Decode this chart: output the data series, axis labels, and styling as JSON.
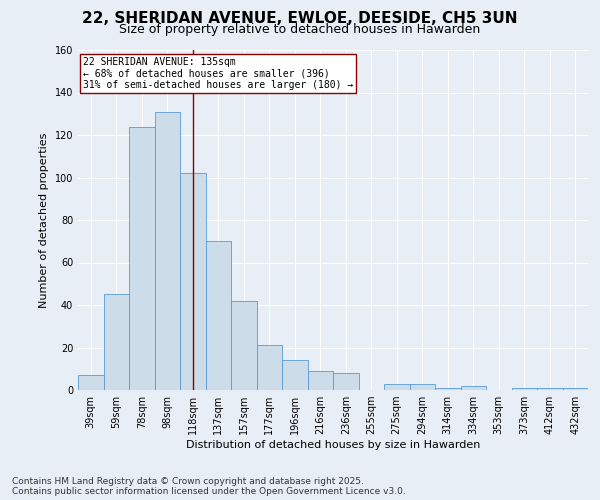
{
  "title": "22, SHERIDAN AVENUE, EWLOE, DEESIDE, CH5 3UN",
  "subtitle": "Size of property relative to detached houses in Hawarden",
  "xlabel": "Distribution of detached houses by size in Hawarden",
  "ylabel": "Number of detached properties",
  "categories": [
    "39sqm",
    "59sqm",
    "78sqm",
    "98sqm",
    "118sqm",
    "137sqm",
    "157sqm",
    "177sqm",
    "196sqm",
    "216sqm",
    "236sqm",
    "255sqm",
    "275sqm",
    "294sqm",
    "314sqm",
    "334sqm",
    "353sqm",
    "373sqm",
    "412sqm",
    "432sqm"
  ],
  "values": [
    7,
    45,
    124,
    131,
    102,
    70,
    42,
    21,
    14,
    9,
    8,
    0,
    3,
    3,
    1,
    2,
    0,
    1,
    1,
    1
  ],
  "bar_color": "#ccdce8",
  "bar_edge_color": "#5b9bd5",
  "vline_color": "#8b0000",
  "vline_pos": 4.5,
  "annotation_text": "22 SHERIDAN AVENUE: 135sqm\n← 68% of detached houses are smaller (396)\n31% of semi-detached houses are larger (180) →",
  "annotation_box_facecolor": "#ffffff",
  "annotation_box_edgecolor": "#8b0000",
  "ylim": [
    0,
    160
  ],
  "yticks": [
    0,
    20,
    40,
    60,
    80,
    100,
    120,
    140,
    160
  ],
  "footer_text": "Contains HM Land Registry data © Crown copyright and database right 2025.\nContains public sector information licensed under the Open Government Licence v3.0.",
  "background_color": "#e8eef5",
  "plot_bg_color": "#e8eef5",
  "title_fontsize": 11,
  "subtitle_fontsize": 9,
  "axis_label_fontsize": 8,
  "tick_fontsize": 7,
  "footer_fontsize": 6.5
}
